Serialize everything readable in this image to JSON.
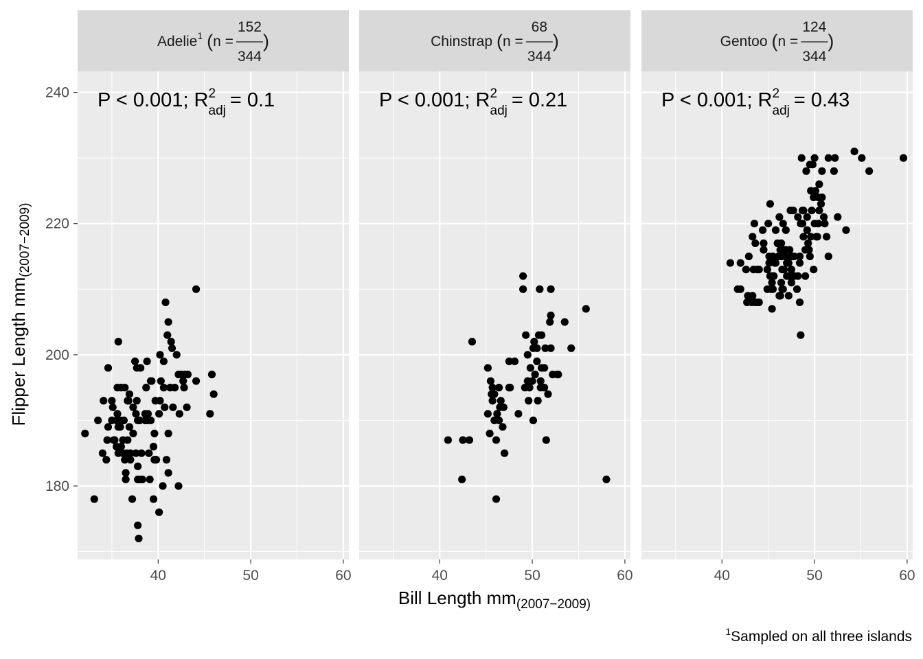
{
  "chart_data": {
    "type": "scatter",
    "xlabel": "Bill Length mm",
    "xlabel_sub": "(2007−2009)",
    "ylabel": "Flipper Length mm",
    "ylabel_sub": "(2007−2009)",
    "xlim": [
      31.3,
      60.6
    ],
    "ylim": [
      168.8,
      243.2
    ],
    "x_ticks": [
      "40",
      "50",
      "60"
    ],
    "y_ticks": [
      "180",
      "200",
      "220",
      "240"
    ],
    "grid": true,
    "facets": [
      {
        "name": "Adelie",
        "superscript": "1",
        "n_label": "n =",
        "numerator": "152",
        "denominator": "344",
        "stat_label": "P < 0.001; R",
        "stat_sup": "2",
        "stat_sub": "adj",
        "stat_value": "= 0.1",
        "points": [
          [
            32.1,
            188
          ],
          [
            33.1,
            178
          ],
          [
            33.5,
            190
          ],
          [
            34.0,
            185
          ],
          [
            34.1,
            193
          ],
          [
            34.4,
            184
          ],
          [
            34.5,
            187
          ],
          [
            34.6,
            189
          ],
          [
            34.6,
            198
          ],
          [
            35.0,
            190
          ],
          [
            35.0,
            193
          ],
          [
            35.1,
            192
          ],
          [
            35.2,
            187
          ],
          [
            35.3,
            187
          ],
          [
            35.5,
            186
          ],
          [
            35.5,
            190
          ],
          [
            35.6,
            191
          ],
          [
            35.6,
            195
          ],
          [
            35.7,
            202
          ],
          [
            35.7,
            185
          ],
          [
            35.7,
            189
          ],
          [
            35.9,
            190
          ],
          [
            35.9,
            189
          ],
          [
            36.0,
            195
          ],
          [
            36.0,
            186
          ],
          [
            36.2,
            187
          ],
          [
            36.2,
            185
          ],
          [
            36.3,
            190
          ],
          [
            36.4,
            184
          ],
          [
            36.4,
            195
          ],
          [
            36.5,
            182
          ],
          [
            36.5,
            181
          ],
          [
            36.6,
            185
          ],
          [
            36.7,
            187
          ],
          [
            36.7,
            193
          ],
          [
            36.8,
            193
          ],
          [
            36.9,
            189
          ],
          [
            37.0,
            185
          ],
          [
            37.0,
            184
          ],
          [
            37.2,
            178
          ],
          [
            37.3,
            192
          ],
          [
            37.3,
            188
          ],
          [
            37.5,
            199
          ],
          [
            37.6,
            185
          ],
          [
            37.6,
            191
          ],
          [
            37.7,
            198
          ],
          [
            37.8,
            174
          ],
          [
            37.8,
            181
          ],
          [
            37.8,
            190
          ],
          [
            37.9,
            172
          ],
          [
            38.0,
            181
          ],
          [
            38.1,
            198
          ],
          [
            38.2,
            185
          ],
          [
            38.3,
            181
          ],
          [
            38.6,
            191
          ],
          [
            38.6,
            190
          ],
          [
            38.7,
            195
          ],
          [
            38.8,
            190
          ],
          [
            38.9,
            190
          ],
          [
            39.0,
            185
          ],
          [
            39.1,
            181
          ],
          [
            39.2,
            196
          ],
          [
            39.2,
            190
          ],
          [
            39.3,
            196
          ],
          [
            39.5,
            186
          ],
          [
            39.5,
            178
          ],
          [
            39.6,
            188
          ],
          [
            39.6,
            184
          ],
          [
            39.7,
            193
          ],
          [
            40.1,
            176
          ],
          [
            40.2,
            200
          ],
          [
            40.2,
            193
          ],
          [
            40.3,
            196
          ],
          [
            40.5,
            180
          ],
          [
            40.6,
            195
          ],
          [
            40.6,
            199
          ],
          [
            40.7,
            192
          ],
          [
            40.8,
            208
          ],
          [
            40.9,
            184
          ],
          [
            41.0,
            203
          ],
          [
            41.1,
            205
          ],
          [
            41.1,
            188
          ],
          [
            41.1,
            182
          ],
          [
            41.3,
            195
          ],
          [
            41.4,
            202
          ],
          [
            41.5,
            201
          ],
          [
            41.6,
            192
          ],
          [
            41.8,
            195
          ],
          [
            42.0,
            200
          ],
          [
            42.2,
            180
          ],
          [
            42.2,
            197
          ],
          [
            42.3,
            191
          ],
          [
            42.5,
            197
          ],
          [
            42.7,
            196
          ],
          [
            42.8,
            195
          ],
          [
            42.9,
            197
          ],
          [
            43.1,
            192
          ],
          [
            43.2,
            197
          ],
          [
            44.1,
            210
          ],
          [
            44.1,
            196
          ],
          [
            45.6,
            191
          ],
          [
            45.8,
            197
          ],
          [
            46.0,
            194
          ],
          [
            38.0,
            190
          ],
          [
            39.8,
            184
          ],
          [
            36.9,
            194
          ],
          [
            38.8,
            199
          ],
          [
            37.8,
            183
          ],
          [
            38.9,
            191
          ],
          [
            37.7,
            193
          ],
          [
            40.1,
            191
          ]
        ]
      },
      {
        "name": "Chinstrap",
        "superscript": "",
        "n_label": "n =",
        "numerator": "68",
        "denominator": "344",
        "stat_label": "P < 0.001; R",
        "stat_sup": "2",
        "stat_sub": "adj",
        "stat_value": "= 0.21",
        "points": [
          [
            40.9,
            187
          ],
          [
            42.4,
            181
          ],
          [
            42.5,
            187
          ],
          [
            43.2,
            187
          ],
          [
            43.5,
            202
          ],
          [
            45.2,
            198
          ],
          [
            45.2,
            191
          ],
          [
            45.4,
            188
          ],
          [
            45.5,
            196
          ],
          [
            45.6,
            194
          ],
          [
            45.7,
            195
          ],
          [
            45.7,
            193
          ],
          [
            45.9,
            190
          ],
          [
            46.1,
            178
          ],
          [
            46.1,
            187
          ],
          [
            46.2,
            191
          ],
          [
            46.4,
            190
          ],
          [
            46.5,
            192
          ],
          [
            46.6,
            193
          ],
          [
            46.8,
            189
          ],
          [
            46.9,
            192
          ],
          [
            47.0,
            185
          ],
          [
            47.5,
            199
          ],
          [
            47.6,
            195
          ],
          [
            48.1,
            199
          ],
          [
            48.5,
            191
          ],
          [
            49.0,
            212
          ],
          [
            49.0,
            210
          ],
          [
            49.2,
            195
          ],
          [
            49.3,
            203
          ],
          [
            49.5,
            200
          ],
          [
            49.6,
            193
          ],
          [
            49.7,
            195
          ],
          [
            49.8,
            198
          ],
          [
            50.0,
            196
          ],
          [
            50.1,
            190
          ],
          [
            50.2,
            202
          ],
          [
            50.3,
            197
          ],
          [
            50.5,
            201
          ],
          [
            50.6,
            193
          ],
          [
            50.8,
            210
          ],
          [
            50.9,
            196
          ],
          [
            51.0,
            203
          ],
          [
            51.3,
            198
          ],
          [
            51.4,
            201
          ],
          [
            51.5,
            187
          ],
          [
            51.7,
            194
          ],
          [
            51.9,
            205
          ],
          [
            52.0,
            210
          ],
          [
            52.0,
            201
          ],
          [
            52.2,
            197
          ],
          [
            52.8,
            197
          ],
          [
            53.5,
            205
          ],
          [
            54.2,
            201
          ],
          [
            55.8,
            207
          ],
          [
            58.0,
            181
          ],
          [
            50.5,
            199
          ],
          [
            49.5,
            196
          ],
          [
            51.3,
            195
          ],
          [
            52.7,
            197
          ],
          [
            46.4,
            195
          ],
          [
            51.0,
            198
          ],
          [
            45.9,
            194
          ],
          [
            50.7,
            203
          ],
          [
            50.1,
            201
          ],
          [
            47.5,
            195
          ],
          [
            50.9,
            195
          ],
          [
            52.0,
            206
          ]
        ]
      },
      {
        "name": "Gentoo",
        "superscript": "",
        "n_label": "n =",
        "numerator": "124",
        "denominator": "344",
        "stat_label": "P < 0.001; R",
        "stat_sup": "2",
        "stat_sub": "adj",
        "stat_value": "= 0.43",
        "points": [
          [
            40.9,
            214
          ],
          [
            41.7,
            210
          ],
          [
            42.0,
            210
          ],
          [
            42.6,
            213
          ],
          [
            42.7,
            208
          ],
          [
            42.8,
            209
          ],
          [
            42.9,
            215
          ],
          [
            43.2,
            208
          ],
          [
            43.3,
            209
          ],
          [
            43.4,
            213
          ],
          [
            43.5,
            220
          ],
          [
            43.6,
            217
          ],
          [
            43.8,
            208
          ],
          [
            44.0,
            208
          ],
          [
            44.4,
            219
          ],
          [
            44.5,
            217
          ],
          [
            44.9,
            210
          ],
          [
            45.1,
            215
          ],
          [
            45.2,
            223
          ],
          [
            45.2,
            212
          ],
          [
            45.3,
            210
          ],
          [
            45.4,
            207
          ],
          [
            45.4,
            211
          ],
          [
            45.5,
            215
          ],
          [
            45.5,
            210
          ],
          [
            45.7,
            214
          ],
          [
            45.8,
            219
          ],
          [
            46.1,
            215
          ],
          [
            46.2,
            221
          ],
          [
            46.2,
            209
          ],
          [
            46.3,
            209
          ],
          [
            46.4,
            215
          ],
          [
            46.4,
            217
          ],
          [
            46.5,
            210
          ],
          [
            46.6,
            210
          ],
          [
            46.8,
            216
          ],
          [
            46.8,
            215
          ],
          [
            46.9,
            216
          ],
          [
            47.0,
            212
          ],
          [
            47.2,
            209
          ],
          [
            47.3,
            216
          ],
          [
            47.4,
            215
          ],
          [
            47.5,
            211
          ],
          [
            47.6,
            215
          ],
          [
            47.7,
            222
          ],
          [
            47.8,
            215
          ],
          [
            48.1,
            210
          ],
          [
            48.2,
            221
          ],
          [
            48.4,
            214
          ],
          [
            48.5,
            220
          ],
          [
            48.6,
            230
          ],
          [
            48.7,
            222
          ],
          [
            48.8,
            222
          ],
          [
            49.0,
            212
          ],
          [
            49.1,
            228
          ],
          [
            49.2,
            221
          ],
          [
            49.3,
            217
          ],
          [
            49.4,
            216
          ],
          [
            49.5,
            229
          ],
          [
            49.6,
            225
          ],
          [
            49.8,
            229
          ],
          [
            49.9,
            213
          ],
          [
            50.0,
            230
          ],
          [
            50.1,
            225
          ],
          [
            50.2,
            218
          ],
          [
            50.4,
            224
          ],
          [
            50.5,
            222
          ],
          [
            50.7,
            223
          ],
          [
            50.8,
            228
          ],
          [
            51.1,
            220
          ],
          [
            51.3,
            218
          ],
          [
            51.5,
            230
          ],
          [
            52.1,
            228
          ],
          [
            52.2,
            230
          ],
          [
            52.5,
            221
          ],
          [
            53.4,
            219
          ],
          [
            54.3,
            231
          ],
          [
            55.1,
            230
          ],
          [
            55.9,
            228
          ],
          [
            59.6,
            230
          ],
          [
            43.3,
            218
          ],
          [
            45.0,
            220
          ],
          [
            46.0,
            217
          ],
          [
            46.6,
            220
          ],
          [
            46.9,
            219
          ],
          [
            48.4,
            208
          ],
          [
            48.5,
            203
          ],
          [
            49.5,
            215
          ],
          [
            50.0,
            220
          ],
          [
            50.4,
            220
          ],
          [
            43.8,
            213
          ],
          [
            44.5,
            216
          ],
          [
            47.5,
            213
          ],
          [
            48.7,
            220
          ],
          [
            49.2,
            219
          ],
          [
            50.5,
            226
          ],
          [
            51.0,
            221
          ],
          [
            45.5,
            212
          ],
          [
            46.5,
            213
          ],
          [
            47.8,
            212
          ],
          [
            48.2,
            212
          ],
          [
            49.0,
            216
          ],
          [
            49.7,
            222
          ],
          [
            50.8,
            224
          ],
          [
            42.0,
            214
          ],
          [
            44.0,
            213
          ],
          [
            45.8,
            214
          ],
          [
            47.0,
            214
          ],
          [
            48.4,
            215
          ],
          [
            49.9,
            224
          ],
          [
            46.4,
            211
          ],
          [
            45.1,
            214
          ],
          [
            49.6,
            218
          ],
          [
            46.7,
            213
          ],
          [
            47.3,
            212
          ],
          [
            43.6,
            208
          ],
          [
            44.9,
            213
          ],
          [
            47.2,
            214
          ],
          [
            50.3,
            218
          ],
          [
            48.8,
            218
          ],
          [
            45.6,
            212
          ],
          [
            46.3,
            216
          ],
          [
            47.4,
            222
          ],
          [
            51.5,
            215
          ]
        ]
      }
    ]
  },
  "caption": {
    "superscript": "1",
    "text": "Sampled on all three islands"
  },
  "colors": {
    "panel_bg": "#ebebeb",
    "strip_bg": "#d9d9d9",
    "grid": "#ffffff",
    "point": "#000000",
    "axis_text": "#4d4d4d",
    "strip_text": "#1a1a1a"
  }
}
